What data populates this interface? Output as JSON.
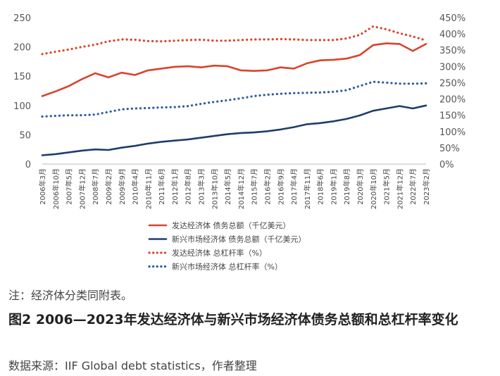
{
  "chart_data": {
    "type": "line",
    "x": [
      "2006年3月",
      "2006年10月",
      "2007年5月",
      "2007年12月",
      "2008年7月",
      "2009年2月",
      "2009年9月",
      "2010年4月",
      "2010年11月",
      "2011年6月",
      "2012年1月",
      "2012年8月",
      "2013年3月",
      "2013年10月",
      "2014年5月",
      "2014年12月",
      "2015年7月",
      "2016年2月",
      "2016年9月",
      "2017年4月",
      "2017年11月",
      "2018年6月",
      "2019年1月",
      "2019年8月",
      "2020年3月",
      "2020年10月",
      "2021年5月",
      "2021年12月",
      "2022年7月",
      "2023年2月"
    ],
    "y_left": {
      "min": 0,
      "max": 250,
      "ticks": [
        "0",
        "50",
        "100",
        "150",
        "200",
        "250"
      ]
    },
    "y_right": {
      "min": 0,
      "max": 450,
      "ticks": [
        "0%",
        "50%",
        "100%",
        "150%",
        "200%",
        "250%",
        "300%",
        "350%",
        "400%",
        "450%"
      ]
    },
    "grid": false,
    "legend_position": "bottom",
    "series": [
      {
        "name": "发达经济体 债务总额（千亿美元）",
        "axis": "left",
        "style": "solid",
        "color": "#d9442b",
        "values": [
          116,
          124,
          133,
          145,
          155,
          148,
          156,
          152,
          160,
          163,
          166,
          167,
          165,
          168,
          167,
          160,
          159,
          160,
          165,
          163,
          172,
          177,
          178,
          180,
          186,
          203,
          206,
          205,
          193,
          205
        ]
      },
      {
        "name": "新兴市场经济体 债务总额（千亿美元）",
        "axis": "left",
        "style": "solid",
        "color": "#1f3d6b",
        "values": [
          15,
          17,
          20,
          23,
          25,
          24,
          28,
          31,
          35,
          38,
          40,
          42,
          45,
          48,
          51,
          53,
          54,
          56,
          59,
          63,
          68,
          70,
          73,
          77,
          83,
          91,
          95,
          99,
          95,
          100
        ]
      },
      {
        "name": "发达经济体 总杠杆率（%）",
        "axis": "right",
        "style": "dotted",
        "color": "#d9442b",
        "values": [
          338,
          345,
          352,
          360,
          367,
          377,
          383,
          382,
          378,
          377,
          379,
          381,
          382,
          379,
          379,
          381,
          383,
          383,
          384,
          383,
          381,
          381,
          381,
          386,
          397,
          423,
          414,
          402,
          392,
          380
        ]
      },
      {
        "name": "新兴市场经济体 总杠杆率（%）",
        "axis": "right",
        "style": "dotted",
        "color": "#2e5c9e",
        "values": [
          146,
          148,
          150,
          150,
          152,
          160,
          168,
          171,
          172,
          174,
          175,
          178,
          185,
          191,
          196,
          202,
          209,
          213,
          216,
          218,
          219,
          220,
          222,
          227,
          240,
          253,
          250,
          247,
          247,
          248
        ]
      }
    ]
  },
  "note": "注：经济体分类同附表。",
  "title": "图2  2006—2023年发达经济体与新兴市场经济体债务总额和总杠杆率变化",
  "source": "数据来源：IIF Global debt statistics，作者整理"
}
